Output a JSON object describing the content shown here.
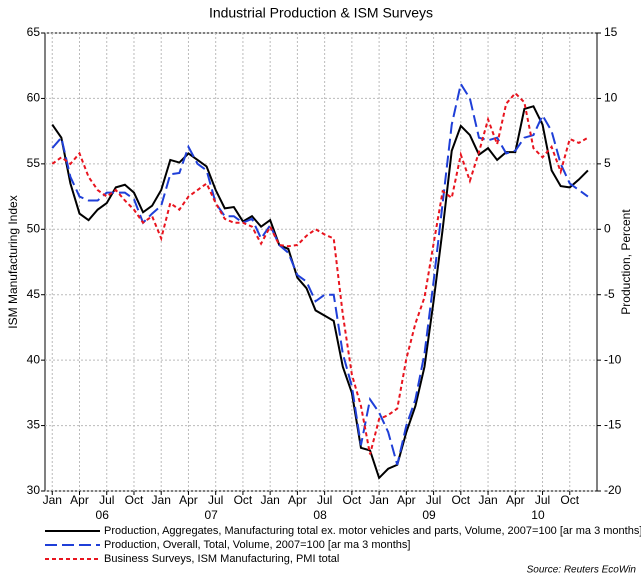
{
  "chart_data": {
    "type": "line",
    "title": "Industrial Production & ISM Surveys",
    "ylabel": "ISM Manufacturing Index",
    "y2label": "Production, Percent",
    "source": "Source: Reuters EcoWin",
    "x": [
      0,
      1,
      2,
      3,
      4,
      5,
      6,
      7,
      8,
      9,
      10,
      11,
      12,
      13,
      14,
      15,
      16,
      17,
      18,
      19,
      20,
      21,
      22,
      23,
      24,
      25,
      26,
      27,
      28,
      29,
      30,
      31,
      32,
      33,
      34,
      35,
      36,
      37,
      38,
      39,
      40,
      41,
      42,
      43,
      44,
      45,
      46,
      47,
      48,
      49,
      50,
      51,
      52,
      53,
      54,
      55,
      56,
      57,
      58,
      59
    ],
    "xlim": [
      -0.8,
      60
    ],
    "xticks": [
      {
        "value": 0,
        "label": "Jan"
      },
      {
        "value": 3,
        "label": "Apr"
      },
      {
        "value": 6,
        "label": "Jul"
      },
      {
        "value": 9,
        "label": "Oct"
      },
      {
        "value": 12,
        "label": "Jan"
      },
      {
        "value": 15,
        "label": "Apr"
      },
      {
        "value": 18,
        "label": "Jul"
      },
      {
        "value": 21,
        "label": "Oct"
      },
      {
        "value": 24,
        "label": "Jan"
      },
      {
        "value": 27,
        "label": "Apr"
      },
      {
        "value": 30,
        "label": "Jul"
      },
      {
        "value": 33,
        "label": "Oct"
      },
      {
        "value": 36,
        "label": "Jan"
      },
      {
        "value": 39,
        "label": "Apr"
      },
      {
        "value": 42,
        "label": "Jul"
      },
      {
        "value": 45,
        "label": "Oct"
      },
      {
        "value": 48,
        "label": "Jan"
      },
      {
        "value": 51,
        "label": "Apr"
      },
      {
        "value": 54,
        "label": "Jul"
      },
      {
        "value": 57,
        "label": "Oct"
      }
    ],
    "year_ticks": [
      {
        "value": 5.5,
        "label": "06"
      },
      {
        "value": 17.5,
        "label": "07"
      },
      {
        "value": 29.5,
        "label": "08"
      },
      {
        "value": 41.5,
        "label": "09"
      },
      {
        "value": 53.5,
        "label": "10"
      }
    ],
    "ylim": [
      30,
      65
    ],
    "yticks": [
      30,
      35,
      40,
      45,
      50,
      55,
      60,
      65
    ],
    "y2lim": [
      -20,
      15
    ],
    "y2ticks": [
      -20,
      -15,
      -10,
      -5,
      0,
      5,
      10,
      15
    ],
    "grid": true,
    "series": [
      {
        "name": "Production, Aggregates, Manufacturing total ex. motor vehicles and parts, Volume, 2007=100 [ar ma 3 months]",
        "color": "#000000",
        "dash": "solid",
        "axis": "y2",
        "values": [
          8,
          7,
          3.5,
          1.2,
          0.7,
          1.5,
          2,
          3.2,
          3.4,
          2.8,
          1.3,
          1.8,
          3,
          5.3,
          5.1,
          5.8,
          5.3,
          4.8,
          3,
          1.6,
          1.7,
          0.6,
          1,
          0.2,
          0.7,
          -1.2,
          -1.5,
          -3.7,
          -4.5,
          -6.2,
          -6.6,
          -7,
          -10.5,
          -12.5,
          -16.7,
          -16.9,
          -19,
          -18.3,
          -18,
          -15.5,
          -13.5,
          -10.5,
          -5.5,
          0,
          6,
          7.9,
          7.2,
          5.7,
          6.2,
          5.3,
          5.9,
          5.9,
          9.2,
          9.4,
          8,
          4.5,
          3.3,
          3.2,
          3.8,
          4.5
        ]
      },
      {
        "name": "Production, Overall, Total, Volume, 2007=100 [ar ma 3 months]",
        "color": "#1f3fd8",
        "dash": "dashed",
        "axis": "y2",
        "values": [
          6.2,
          7,
          4,
          2.5,
          2.2,
          2.2,
          2.8,
          2.8,
          2.8,
          2.3,
          0.5,
          1.2,
          1.8,
          4.2,
          4.3,
          6.3,
          5,
          4.5,
          2,
          1,
          1,
          0.5,
          0.8,
          -0.7,
          0.3,
          -1.2,
          -1.8,
          -3.5,
          -4,
          -5.5,
          -5,
          -5,
          -9.5,
          -12,
          -16.5,
          -13,
          -14,
          -15.5,
          -18,
          -15,
          -13,
          -9.5,
          -4,
          2,
          8,
          11.1,
          10,
          7,
          6.8,
          7,
          5.8,
          6,
          7,
          7.2,
          8.7,
          7.5,
          5,
          3.5,
          3,
          2.5
        ]
      },
      {
        "name": "Business Surveys, ISM Manufacturing, PMI total",
        "color": "#e8141e",
        "dash": "dotted",
        "axis": "y",
        "values": [
          55,
          55.5,
          55,
          55.8,
          54,
          53,
          52.5,
          53,
          52.2,
          51.5,
          50.5,
          51,
          49.3,
          52,
          51.5,
          52.5,
          53,
          53.5,
          52,
          50.8,
          50.5,
          50.5,
          50.2,
          48.9,
          50.2,
          48.8,
          48.7,
          48.8,
          49.5,
          50,
          49.6,
          49.3,
          43.5,
          38.9,
          36.5,
          32.8,
          35.5,
          35.8,
          36.3,
          40.1,
          42.8,
          44.8,
          48.9,
          52.9,
          52.4,
          55.7,
          53.7,
          55.9,
          58.4,
          56.5,
          59.6,
          60.4,
          59.7,
          56.2,
          55.5,
          56.3,
          54.4,
          56.9,
          56.6,
          57
        ]
      }
    ]
  }
}
